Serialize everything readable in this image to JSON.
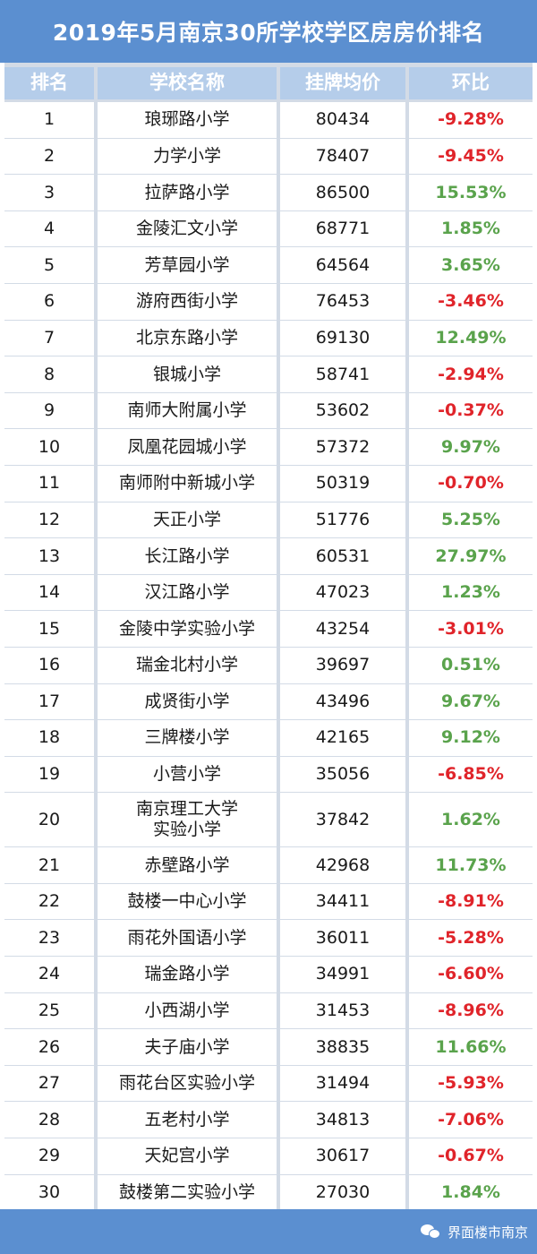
{
  "title": "2019年5月南京30所学校学区房房价排名",
  "headers": {
    "rank": "排名",
    "name": "学校名称",
    "price": "挂牌均价",
    "change": "环比"
  },
  "colors": {
    "banner": "#5b8fd0",
    "header": "#b5cdea",
    "positive": "#5aa34c",
    "negative": "#e0242a"
  },
  "rows": [
    {
      "rank": "1",
      "name": "琅琊路小学",
      "price": "80434",
      "change": "-9.28%"
    },
    {
      "rank": "2",
      "name": "力学小学",
      "price": "78407",
      "change": "-9.45%"
    },
    {
      "rank": "3",
      "name": "拉萨路小学",
      "price": "86500",
      "change": "15.53%"
    },
    {
      "rank": "4",
      "name": "金陵汇文小学",
      "price": "68771",
      "change": "1.85%"
    },
    {
      "rank": "5",
      "name": "芳草园小学",
      "price": "64564",
      "change": "3.65%"
    },
    {
      "rank": "6",
      "name": "游府西街小学",
      "price": "76453",
      "change": "-3.46%"
    },
    {
      "rank": "7",
      "name": "北京东路小学",
      "price": "69130",
      "change": "12.49%"
    },
    {
      "rank": "8",
      "name": "银城小学",
      "price": "58741",
      "change": "-2.94%"
    },
    {
      "rank": "9",
      "name": "南师大附属小学",
      "price": "53602",
      "change": "-0.37%"
    },
    {
      "rank": "10",
      "name": "凤凰花园城小学",
      "price": "57372",
      "change": "9.97%"
    },
    {
      "rank": "11",
      "name": "南师附中新城小学",
      "price": "50319",
      "change": "-0.70%"
    },
    {
      "rank": "12",
      "name": "天正小学",
      "price": "51776",
      "change": "5.25%"
    },
    {
      "rank": "13",
      "name": "长江路小学",
      "price": "60531",
      "change": "27.97%"
    },
    {
      "rank": "14",
      "name": "汉江路小学",
      "price": "47023",
      "change": "1.23%"
    },
    {
      "rank": "15",
      "name": "金陵中学实验小学",
      "price": "43254",
      "change": "-3.01%"
    },
    {
      "rank": "16",
      "name": "瑞金北村小学",
      "price": "39697",
      "change": "0.51%"
    },
    {
      "rank": "17",
      "name": "成贤街小学",
      "price": "43496",
      "change": "9.67%"
    },
    {
      "rank": "18",
      "name": "三牌楼小学",
      "price": "42165",
      "change": "9.12%"
    },
    {
      "rank": "19",
      "name": "小营小学",
      "price": "35056",
      "change": "-6.85%"
    },
    {
      "rank": "20",
      "name": "南京理工大学\n实验小学",
      "price": "37842",
      "change": "1.62%"
    },
    {
      "rank": "21",
      "name": "赤壁路小学",
      "price": "42968",
      "change": "11.73%"
    },
    {
      "rank": "22",
      "name": "鼓楼一中心小学",
      "price": "34411",
      "change": "-8.91%"
    },
    {
      "rank": "23",
      "name": "雨花外国语小学",
      "price": "36011",
      "change": "-5.28%"
    },
    {
      "rank": "24",
      "name": "瑞金路小学",
      "price": "34991",
      "change": "-6.60%"
    },
    {
      "rank": "25",
      "name": "小西湖小学",
      "price": "31453",
      "change": "-8.96%"
    },
    {
      "rank": "26",
      "name": "夫子庙小学",
      "price": "38835",
      "change": "11.66%"
    },
    {
      "rank": "27",
      "name": "雨花台区实验小学",
      "price": "31494",
      "change": "-5.93%"
    },
    {
      "rank": "28",
      "name": "五老村小学",
      "price": "34813",
      "change": "-7.06%"
    },
    {
      "rank": "29",
      "name": "天妃宫小学",
      "price": "30617",
      "change": "-0.67%"
    },
    {
      "rank": "30",
      "name": "鼓楼第二实验小学",
      "price": "27030",
      "change": "1.84%"
    }
  ],
  "footer": {
    "brand": "界面楼市南京",
    "icon": "wechat-icon"
  }
}
